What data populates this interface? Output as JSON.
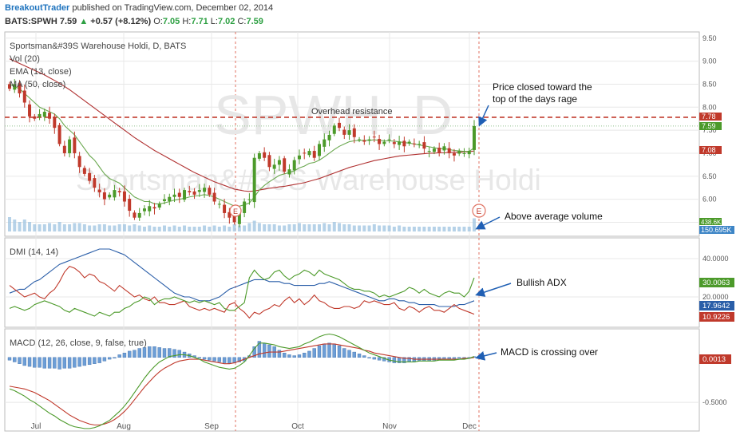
{
  "header": {
    "author": "BreakoutTrader",
    "published_text": "published on TradingView.com, December 02, 2014",
    "symbol": "BATS:SPWH",
    "last": "7.59",
    "up_arrow": "▲",
    "change": "+0.57 (+8.12%)",
    "o_label": "O:",
    "o_value": "7.05",
    "h_label": "H:",
    "h_value": "7.71",
    "l_label": "L:",
    "l_value": "7.02",
    "c_label": "C:",
    "c_value": "7.59"
  },
  "chart_data": [
    {
      "type": "candlestick",
      "title": "Sportsman&#39S Warehouse Holdi, D, BATS",
      "watermark_symbol": "SPWH, D",
      "watermark_name": "Sportsman&#39S Warehouse Holdi",
      "indicators": [
        "Vol (20)",
        "EMA (13, close)",
        "MA (50, close)"
      ],
      "x_ticks": [
        "Jul",
        "Aug",
        "Sep",
        "Oct",
        "Nov",
        "Dec"
      ],
      "y_ticks": [
        "9.50",
        "9.00",
        "8.50",
        "8.00",
        "7.50",
        "7.00",
        "6.50",
        "6.00",
        "5.50"
      ],
      "ylim": [
        5.3,
        9.6
      ],
      "closes": [
        8.4,
        8.5,
        8.3,
        8.1,
        7.8,
        7.75,
        7.85,
        7.9,
        7.75,
        7.55,
        7.2,
        7.0,
        7.3,
        7.0,
        6.7,
        6.55,
        6.4,
        6.25,
        6.15,
        6.0,
        6.1,
        6.2,
        6.15,
        5.95,
        5.75,
        5.6,
        5.7,
        5.8,
        5.85,
        5.8,
        5.9,
        6.0,
        6.05,
        6.1,
        6.05,
        6.2,
        6.15,
        6.1,
        6.2,
        6.25,
        6.1,
        5.95,
        5.9,
        5.7,
        5.6,
        5.5,
        5.7,
        5.95,
        6.0,
        6.9,
        7.0,
        6.9,
        6.7,
        6.75,
        6.85,
        6.6,
        6.65,
        6.85,
        6.95,
        7.0,
        7.05,
        6.9,
        7.2,
        7.3,
        7.4,
        7.6,
        7.55,
        7.4,
        7.5,
        7.35,
        7.3,
        7.25,
        7.3,
        7.35,
        7.2,
        7.25,
        7.3,
        7.2,
        7.25,
        7.15,
        7.25,
        7.2,
        7.2,
        7.1,
        7.05,
        7.1,
        7.0,
        7.15,
        7.0,
        6.95,
        7.05,
        7.0,
        7.05,
        7.59
      ],
      "volume": [
        0.6,
        0.5,
        0.4,
        0.5,
        0.4,
        0.3,
        0.3,
        0.3,
        0.35,
        0.3,
        0.4,
        0.3,
        0.3,
        0.35,
        0.35,
        0.3,
        0.25,
        0.25,
        0.3,
        0.3,
        0.25,
        0.25,
        0.3,
        0.3,
        0.25,
        0.3,
        0.25,
        0.2,
        0.25,
        0.2,
        0.2,
        0.25,
        0.2,
        0.25,
        0.2,
        0.25,
        0.2,
        0.2,
        0.2,
        0.25,
        0.2,
        0.25,
        0.2,
        0.25,
        0.2,
        0.3,
        0.25,
        0.25,
        0.35,
        0.45,
        0.35,
        0.3,
        0.3,
        0.3,
        0.25,
        0.25,
        0.3,
        0.3,
        0.35,
        0.3,
        0.3,
        0.3,
        0.3,
        0.35,
        0.3,
        0.4,
        0.35,
        0.3,
        0.3,
        0.25,
        0.25,
        0.25,
        0.25,
        0.3,
        0.25,
        0.25,
        0.25,
        0.2,
        0.25,
        0.2,
        0.2,
        0.2,
        0.2,
        0.2,
        0.2,
        0.2,
        0.2,
        0.2,
        0.2,
        0.2,
        0.2,
        0.2,
        0.2,
        0.55
      ],
      "ema13": [
        8.5,
        8.45,
        8.4,
        8.3,
        8.2,
        8.1,
        8.0,
        7.95,
        7.9,
        7.85,
        7.75,
        7.6,
        7.5,
        7.4,
        7.25,
        7.1,
        6.95,
        6.85,
        6.7,
        6.55,
        6.45,
        6.4,
        6.35,
        6.25,
        6.15,
        6.05,
        6.0,
        5.95,
        5.95,
        5.9,
        5.9,
        5.92,
        5.95,
        5.98,
        6.0,
        6.02,
        6.05,
        6.07,
        6.08,
        6.1,
        6.08,
        6.05,
        6.0,
        5.95,
        5.9,
        5.85,
        5.85,
        5.88,
        5.92,
        6.05,
        6.2,
        6.3,
        6.38,
        6.45,
        6.52,
        6.55,
        6.58,
        6.62,
        6.68,
        6.72,
        6.78,
        6.8,
        6.85,
        6.92,
        7.0,
        7.08,
        7.15,
        7.2,
        7.25,
        7.27,
        7.28,
        7.28,
        7.28,
        7.29,
        7.28,
        7.27,
        7.27,
        7.26,
        7.25,
        7.23,
        7.22,
        7.2,
        7.18,
        7.16,
        7.14,
        7.12,
        7.1,
        7.1,
        7.08,
        7.06,
        7.05,
        7.04,
        7.04,
        7.12
      ],
      "ma50": [
        9.05,
        9.0,
        8.95,
        8.9,
        8.85,
        8.8,
        8.75,
        8.7,
        8.64,
        8.58,
        8.52,
        8.45,
        8.38,
        8.3,
        8.22,
        8.14,
        8.06,
        7.98,
        7.9,
        7.82,
        7.74,
        7.66,
        7.58,
        7.5,
        7.42,
        7.34,
        7.27,
        7.2,
        7.13,
        7.06,
        7.0,
        6.94,
        6.88,
        6.82,
        6.76,
        6.7,
        6.64,
        6.58,
        6.53,
        6.48,
        6.43,
        6.38,
        6.34,
        6.3,
        6.26,
        6.22,
        6.2,
        6.18,
        6.17,
        6.18,
        6.2,
        6.22,
        6.24,
        6.25,
        6.27,
        6.28,
        6.3,
        6.32,
        6.34,
        6.36,
        6.39,
        6.42,
        6.45,
        6.49,
        6.53,
        6.57,
        6.61,
        6.65,
        6.69,
        6.72,
        6.75,
        6.78,
        6.81,
        6.84,
        6.86,
        6.88,
        6.9,
        6.92,
        6.94,
        6.95,
        6.96,
        6.97,
        6.98,
        6.99,
        7.0,
        7.0,
        7.01,
        7.01,
        7.02,
        7.02,
        7.02,
        7.03,
        7.03,
        7.05
      ],
      "right_labels": [
        "7.78",
        "7.59",
        "7.08"
      ],
      "volume_labels": [
        "438.6K",
        "150.695K"
      ],
      "resistance_level": 7.78,
      "resistance_label": "Overhead resistance",
      "earnings_marker": "E",
      "annotations": [
        "Price closed toward the top of the days rage",
        "Above average volume"
      ]
    },
    {
      "type": "line",
      "title": "DMI (14, 14)",
      "y_ticks": [
        "40.0000",
        "20.0000"
      ],
      "ylim": [
        5,
        50
      ],
      "series": [
        {
          "color": "#2a5ea8",
          "values": [
            22,
            23,
            24,
            24,
            26,
            28,
            29,
            31,
            33,
            35,
            37,
            38,
            39,
            40,
            41,
            42,
            43,
            44,
            45,
            45,
            45,
            44,
            43,
            42,
            40,
            38,
            36,
            34,
            32,
            30,
            28,
            26,
            24,
            22,
            21,
            20,
            20,
            19,
            18,
            18,
            18,
            19,
            20,
            22,
            24,
            25,
            26,
            27,
            28,
            29,
            29,
            29,
            28,
            28,
            28,
            27,
            27,
            26,
            26,
            26,
            26,
            26,
            27,
            27,
            28,
            27,
            26,
            25,
            24,
            23,
            22,
            21,
            20,
            19,
            18,
            18,
            19,
            19,
            18,
            18,
            17,
            17,
            16,
            16,
            16,
            16,
            15,
            15,
            15,
            15,
            16,
            16,
            17,
            18
          ]
        },
        {
          "color": "#c0392b",
          "values": [
            26,
            24,
            22,
            20,
            21,
            22,
            20,
            19,
            22,
            24,
            28,
            33,
            36,
            35,
            33,
            30,
            32,
            31,
            28,
            27,
            25,
            23,
            26,
            24,
            22,
            20,
            21,
            19,
            18,
            20,
            17,
            17,
            16,
            16,
            17,
            18,
            15,
            14,
            13,
            14,
            13,
            14,
            13,
            12,
            16,
            17,
            14,
            12,
            9,
            12,
            11,
            13,
            14,
            16,
            15,
            18,
            20,
            17,
            19,
            16,
            18,
            21,
            18,
            17,
            15,
            14,
            14,
            15,
            15,
            14,
            15,
            18,
            17,
            18,
            17,
            16,
            16,
            17,
            14,
            13,
            15,
            14,
            12,
            14,
            15,
            13,
            13,
            12,
            14,
            16,
            14,
            13,
            12,
            11
          ]
        },
        {
          "color": "#4c9a2a",
          "values": [
            14,
            15,
            14,
            13,
            14,
            16,
            17,
            18,
            17,
            16,
            15,
            13,
            12,
            14,
            13,
            12,
            11,
            10,
            12,
            11,
            10,
            12,
            12,
            14,
            15,
            17,
            18,
            20,
            19,
            16,
            18,
            19,
            19,
            20,
            19,
            18,
            17,
            18,
            17,
            18,
            17,
            16,
            17,
            14,
            13,
            13,
            15,
            17,
            30,
            34,
            31,
            29,
            30,
            33,
            34,
            31,
            29,
            31,
            32,
            34,
            33,
            31,
            34,
            32,
            31,
            30,
            29,
            27,
            25,
            24,
            24,
            23,
            23,
            22,
            20,
            21,
            20,
            21,
            22,
            23,
            25,
            24,
            22,
            24,
            22,
            21,
            20,
            22,
            23,
            22,
            22,
            20,
            23,
            30
          ]
        }
      ],
      "right_labels": [
        "30.0063",
        "17.9642",
        "10.9226"
      ]
    },
    {
      "type": "bar",
      "title": "MACD (12, 26, close, 9, false, true)",
      "y_ticks": [
        "-0.5000"
      ],
      "ylim": [
        -0.8,
        0.3
      ],
      "histogram": [
        -0.03,
        -0.05,
        -0.07,
        -0.09,
        -0.1,
        -0.11,
        -0.11,
        -0.12,
        -0.12,
        -0.12,
        -0.13,
        -0.12,
        -0.12,
        -0.11,
        -0.1,
        -0.09,
        -0.08,
        -0.07,
        -0.06,
        -0.04,
        -0.02,
        0.0,
        0.03,
        0.05,
        0.07,
        0.08,
        0.1,
        0.11,
        0.12,
        0.12,
        0.11,
        0.1,
        0.1,
        0.09,
        0.08,
        0.06,
        0.04,
        0.02,
        0.0,
        -0.02,
        -0.03,
        -0.04,
        -0.05,
        -0.06,
        -0.07,
        -0.06,
        -0.05,
        -0.04,
        0.02,
        0.12,
        0.18,
        0.16,
        0.14,
        0.12,
        0.08,
        0.05,
        0.03,
        0.02,
        0.03,
        0.05,
        0.07,
        0.1,
        0.13,
        0.15,
        0.16,
        0.15,
        0.13,
        0.1,
        0.08,
        0.06,
        0.04,
        0.02,
        0.0,
        -0.02,
        -0.03,
        -0.04,
        -0.05,
        -0.06,
        -0.06,
        -0.06,
        -0.05,
        -0.05,
        -0.04,
        -0.04,
        -0.04,
        -0.03,
        -0.03,
        -0.02,
        -0.02,
        -0.02,
        -0.01,
        -0.01,
        0.0,
        0.01
      ],
      "series": [
        {
          "color": "#c0392b",
          "values": [
            -0.32,
            -0.33,
            -0.34,
            -0.35,
            -0.37,
            -0.39,
            -0.42,
            -0.45,
            -0.48,
            -0.52,
            -0.56,
            -0.6,
            -0.64,
            -0.67,
            -0.7,
            -0.72,
            -0.74,
            -0.75,
            -0.75,
            -0.74,
            -0.72,
            -0.69,
            -0.65,
            -0.6,
            -0.54,
            -0.47,
            -0.4,
            -0.33,
            -0.27,
            -0.21,
            -0.16,
            -0.12,
            -0.09,
            -0.06,
            -0.04,
            -0.03,
            -0.02,
            -0.02,
            -0.02,
            -0.03,
            -0.04,
            -0.05,
            -0.06,
            -0.07,
            -0.07,
            -0.06,
            -0.04,
            -0.02,
            0.0,
            0.02,
            0.04,
            0.05,
            0.06,
            0.06,
            0.06,
            0.07,
            0.08,
            0.09,
            0.1,
            0.11,
            0.12,
            0.13,
            0.14,
            0.15,
            0.15,
            0.15,
            0.14,
            0.13,
            0.12,
            0.11,
            0.1,
            0.08,
            0.07,
            0.05,
            0.04,
            0.03,
            0.02,
            0.01,
            0.0,
            -0.01,
            -0.01,
            -0.02,
            -0.02,
            -0.02,
            -0.02,
            -0.02,
            -0.02,
            -0.02,
            -0.02,
            -0.02,
            -0.02,
            -0.01,
            -0.01,
            0.0
          ]
        },
        {
          "color": "#4c9a2a",
          "values": [
            -0.35,
            -0.37,
            -0.4,
            -0.43,
            -0.47,
            -0.5,
            -0.54,
            -0.58,
            -0.62,
            -0.65,
            -0.69,
            -0.72,
            -0.75,
            -0.77,
            -0.78,
            -0.79,
            -0.79,
            -0.78,
            -0.76,
            -0.73,
            -0.7,
            -0.65,
            -0.6,
            -0.54,
            -0.47,
            -0.39,
            -0.31,
            -0.23,
            -0.16,
            -0.1,
            -0.05,
            -0.02,
            0.01,
            0.02,
            0.03,
            0.03,
            0.02,
            0.0,
            -0.02,
            -0.05,
            -0.07,
            -0.09,
            -0.11,
            -0.12,
            -0.13,
            -0.12,
            -0.09,
            -0.05,
            0.02,
            0.1,
            0.16,
            0.16,
            0.15,
            0.14,
            0.12,
            0.11,
            0.1,
            0.11,
            0.12,
            0.15,
            0.17,
            0.2,
            0.23,
            0.25,
            0.26,
            0.25,
            0.23,
            0.2,
            0.17,
            0.14,
            0.11,
            0.08,
            0.05,
            0.03,
            0.01,
            -0.01,
            -0.03,
            -0.04,
            -0.05,
            -0.05,
            -0.05,
            -0.05,
            -0.04,
            -0.04,
            -0.04,
            -0.04,
            -0.03,
            -0.03,
            -0.03,
            -0.03,
            -0.02,
            -0.02,
            -0.01,
            0.01
          ]
        }
      ],
      "right_labels": [
        "0.0013"
      ]
    }
  ],
  "annotations": {
    "price_closed": "Price closed toward the top of the days rage",
    "above_volume": "Above average volume",
    "bullish_adx": "Bullish ADX",
    "macd_crossing": "MACD is crossing over"
  },
  "colors": {
    "up": "#4c9a2a",
    "down": "#c0392b",
    "grid": "#e8e8e8",
    "volume": "#9ec3e0",
    "arrow": "#1f5fb4"
  }
}
